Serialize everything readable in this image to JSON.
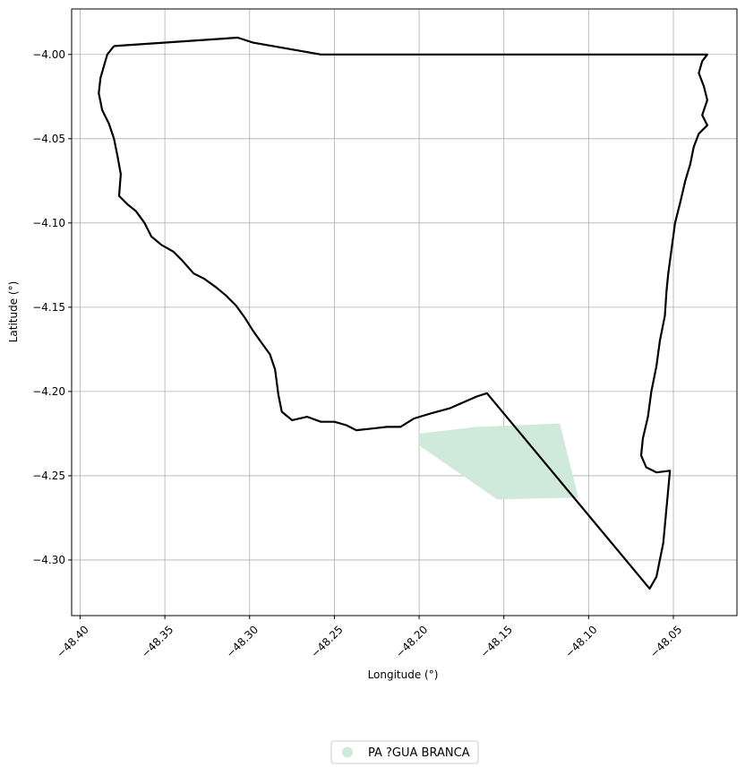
{
  "map": {
    "xlabel": "Longitude (°)",
    "ylabel": "Latitude (°)",
    "xlim": [
      -48.405,
      -48.0125
    ],
    "ylim": [
      -4.333,
      -3.973
    ],
    "grid": true,
    "x_ticks": [
      -48.4,
      -48.35,
      -48.3,
      -48.25,
      -48.2,
      -48.15,
      -48.1,
      -48.05
    ],
    "x_tick_labels": [
      "−48.40",
      "−48.35",
      "−48.30",
      "−48.25",
      "−48.20",
      "−48.15",
      "−48.10",
      "−48.05"
    ],
    "y_ticks": [
      -4.0,
      -4.05,
      -4.1,
      -4.15,
      -4.2,
      -4.25,
      -4.3
    ],
    "y_tick_labels": [
      "−4.00",
      "−4.05",
      "−4.10",
      "−4.15",
      "−4.20",
      "−4.25",
      "−4.30"
    ],
    "colors": {
      "boundary": "#000000",
      "fill": "#cfeadb",
      "grid": "#b0b0b0"
    },
    "legend": {
      "position": "bottom-center",
      "entries": [
        "PA ?GUA BRANCA"
      ]
    },
    "boundary": [
      [
        -48.38,
        -3.995
      ],
      [
        -48.307,
        -3.99
      ],
      [
        -48.298,
        -3.993
      ],
      [
        -48.258,
        -4.0
      ],
      [
        -48.04,
        -4.0
      ],
      [
        -48.03,
        -4.0
      ],
      [
        -48.033,
        -4.004
      ],
      [
        -48.035,
        -4.011
      ],
      [
        -48.032,
        -4.019
      ],
      [
        -48.03,
        -4.027
      ],
      [
        -48.033,
        -4.036
      ],
      [
        -48.03,
        -4.042
      ],
      [
        -48.035,
        -4.047
      ],
      [
        -48.038,
        -4.055
      ],
      [
        -48.04,
        -4.065
      ],
      [
        -48.043,
        -4.075
      ],
      [
        -48.046,
        -4.088
      ],
      [
        -48.049,
        -4.1
      ],
      [
        -48.051,
        -4.115
      ],
      [
        -48.053,
        -4.13
      ],
      [
        -48.054,
        -4.14
      ],
      [
        -48.055,
        -4.155
      ],
      [
        -48.058,
        -4.17
      ],
      [
        -48.06,
        -4.185
      ],
      [
        -48.063,
        -4.2
      ],
      [
        -48.065,
        -4.215
      ],
      [
        -48.068,
        -4.228
      ],
      [
        -48.069,
        -4.238
      ],
      [
        -48.066,
        -4.245
      ],
      [
        -48.06,
        -4.248
      ],
      [
        -48.052,
        -4.247
      ],
      [
        -48.056,
        -4.29
      ],
      [
        -48.058,
        -4.3
      ],
      [
        -48.06,
        -4.31
      ],
      [
        -48.064,
        -4.317
      ],
      [
        -48.16,
        -4.201
      ],
      [
        -48.166,
        -4.203
      ],
      [
        -48.173,
        -4.206
      ],
      [
        -48.182,
        -4.21
      ],
      [
        -48.193,
        -4.213
      ],
      [
        -48.203,
        -4.216
      ],
      [
        -48.211,
        -4.221
      ],
      [
        -48.219,
        -4.221
      ],
      [
        -48.228,
        -4.222
      ],
      [
        -48.237,
        -4.223
      ],
      [
        -48.243,
        -4.22
      ],
      [
        -48.25,
        -4.218
      ],
      [
        -48.258,
        -4.218
      ],
      [
        -48.266,
        -4.215
      ],
      [
        -48.275,
        -4.217
      ],
      [
        -48.281,
        -4.212
      ],
      [
        -48.283,
        -4.202
      ],
      [
        -48.285,
        -4.187
      ],
      [
        -48.288,
        -4.178
      ],
      [
        -48.293,
        -4.171
      ],
      [
        -48.298,
        -4.164
      ],
      [
        -48.303,
        -4.156
      ],
      [
        -48.308,
        -4.149
      ],
      [
        -48.314,
        -4.143
      ],
      [
        -48.32,
        -4.138
      ],
      [
        -48.327,
        -4.133
      ],
      [
        -48.333,
        -4.13
      ],
      [
        -48.34,
        -4.122
      ],
      [
        -48.345,
        -4.117
      ],
      [
        -48.352,
        -4.113
      ],
      [
        -48.358,
        -4.108
      ],
      [
        -48.362,
        -4.1
      ],
      [
        -48.367,
        -4.093
      ],
      [
        -48.372,
        -4.089
      ],
      [
        -48.377,
        -4.084
      ],
      [
        -48.376,
        -4.071
      ],
      [
        -48.378,
        -4.06
      ],
      [
        -48.38,
        -4.05
      ],
      [
        -48.383,
        -4.041
      ],
      [
        -48.387,
        -4.033
      ],
      [
        -48.389,
        -4.023
      ],
      [
        -48.388,
        -4.014
      ],
      [
        -48.386,
        -4.007
      ],
      [
        -48.384,
        -4.0
      ],
      [
        -48.38,
        -3.995
      ]
    ],
    "fill_polygon": [
      [
        -48.2,
        -4.225
      ],
      [
        -48.166,
        -4.221
      ],
      [
        -48.117,
        -4.219
      ],
      [
        -48.106,
        -4.263
      ],
      [
        -48.154,
        -4.264
      ],
      [
        -48.2,
        -4.232
      ]
    ]
  }
}
